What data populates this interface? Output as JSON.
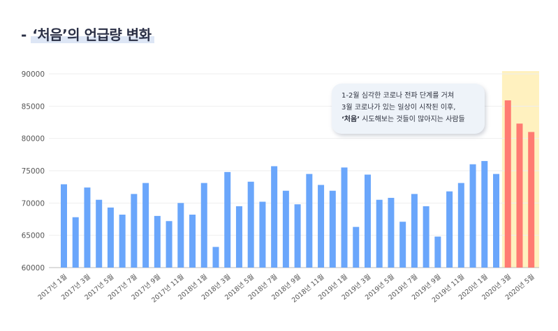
{
  "page": {
    "title_prefix": "- ",
    "title_highlight": "‘처음’의 언급량 변화"
  },
  "annotation": {
    "line1": "1-2월 심각한 코로나 전파 단계를 거쳐",
    "line2": "3월 코로나가 있는 일상이 시작된 이후,",
    "line3_bold": "‘처음’",
    "line3_rest": " 시도해보는 것들이 많아지는 사람들"
  },
  "colors": {
    "bar_default": "#6aa6fb",
    "bar_highlight": "#ff7b72",
    "highlight_band": "#fff1bf",
    "axis_text": "#555555",
    "grid": "#eeeeee"
  },
  "chart_data": {
    "type": "bar",
    "ylim": [
      60000,
      90000
    ],
    "yticks": [
      60000,
      65000,
      70000,
      75000,
      80000,
      85000,
      90000
    ],
    "xtick_labels": [
      "2017년 1월",
      "2017년 3월",
      "2017년 5월",
      "2017년 7월",
      "2017년 9월",
      "2017년 11월",
      "2018년 1월",
      "2018년 3월",
      "2018년 5월",
      "2018년 7월",
      "2018년 9월",
      "2018년 11월",
      "2019년 1월",
      "2019년 3월",
      "2019년 5월",
      "2019년 7월",
      "2019년 9월",
      "2019년 11월",
      "2020년 1월",
      "2020년 3월",
      "2020년 5월"
    ],
    "values": [
      72900,
      67800,
      72400,
      70500,
      69300,
      68200,
      71400,
      73100,
      68000,
      67200,
      70000,
      68200,
      73100,
      63200,
      74800,
      69500,
      73300,
      70200,
      75700,
      71900,
      69800,
      74500,
      72800,
      71900,
      75500,
      66300,
      74400,
      70500,
      70800,
      67100,
      71400,
      69500,
      64800,
      71800,
      73100,
      76000,
      76500,
      74500,
      85900,
      82300,
      81000
    ],
    "highlight_from_index": 38
  }
}
